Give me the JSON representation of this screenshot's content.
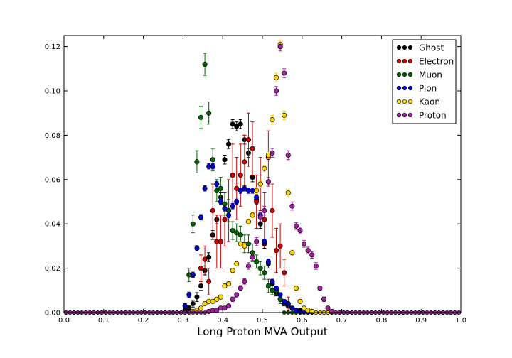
{
  "chart_data": {
    "type": "scatter",
    "title": "",
    "xlabel": "Long Proton MVA Output",
    "ylabel": "",
    "xlim": [
      0.0,
      1.0
    ],
    "ylim": [
      0.0,
      0.125
    ],
    "xticks": [
      "0.0",
      "0.1",
      "0.2",
      "0.3",
      "0.4",
      "0.5",
      "0.6",
      "0.7",
      "0.8",
      "0.9",
      "1.0"
    ],
    "yticks": [
      "0.00",
      "0.02",
      "0.04",
      "0.06",
      "0.08",
      "0.10",
      "0.12"
    ],
    "grid": false,
    "legend_position": "top-right",
    "bin_width": 0.01,
    "series": [
      {
        "name": "Ghost",
        "color": "#000000",
        "x": [
          0.305,
          0.315,
          0.325,
          0.335,
          0.345,
          0.355,
          0.365,
          0.375,
          0.385,
          0.395,
          0.405,
          0.415,
          0.425,
          0.435,
          0.445,
          0.455,
          0.465,
          0.475,
          0.485,
          0.495,
          0.505,
          0.515,
          0.525,
          0.535,
          0.545,
          0.555,
          0.565,
          0.575,
          0.585,
          0.595
        ],
        "y": [
          0.001,
          0.002,
          0.004,
          0.007,
          0.012,
          0.019,
          0.025,
          0.035,
          0.042,
          0.052,
          0.069,
          0.076,
          0.085,
          0.084,
          0.085,
          0.078,
          0.072,
          0.061,
          0.051,
          0.04,
          0.031,
          0.022,
          0.013,
          0.009,
          0.006,
          0.004,
          0.003,
          0.002,
          0.001,
          0.001
        ],
        "err": [
          0.0008,
          0.001,
          0.0015,
          0.002,
          0.002,
          0.002,
          0.002,
          0.002,
          0.002,
          0.002,
          0.002,
          0.002,
          0.002,
          0.002,
          0.002,
          0.002,
          0.002,
          0.002,
          0.002,
          0.002,
          0.002,
          0.002,
          0.002,
          0.0015,
          0.001,
          0.001,
          0.001,
          0.0008,
          0.0005,
          0.0005
        ]
      },
      {
        "name": "Electron",
        "color": "#cc0000",
        "x": [
          0.345,
          0.355,
          0.365,
          0.375,
          0.385,
          0.395,
          0.405,
          0.415,
          0.425,
          0.435,
          0.445,
          0.455,
          0.465,
          0.475,
          0.485,
          0.495,
          0.505,
          0.515,
          0.525,
          0.535,
          0.545,
          0.555,
          0.565
        ],
        "y": [
          0.02,
          0.024,
          0.014,
          0.046,
          0.032,
          0.032,
          0.042,
          0.046,
          0.062,
          0.056,
          0.062,
          0.068,
          0.078,
          0.074,
          0.05,
          0.058,
          0.042,
          0.07,
          0.046,
          0.028,
          0.03,
          0.018,
          0.004
        ],
        "err": [
          0.006,
          0.006,
          0.006,
          0.012,
          0.012,
          0.012,
          0.012,
          0.014,
          0.014,
          0.014,
          0.014,
          0.012,
          0.012,
          0.012,
          0.012,
          0.012,
          0.012,
          0.012,
          0.012,
          0.01,
          0.01,
          0.006,
          0.003
        ]
      },
      {
        "name": "Muon",
        "color": "#006400",
        "x": [
          0.315,
          0.325,
          0.335,
          0.345,
          0.355,
          0.365,
          0.375,
          0.385,
          0.395,
          0.405,
          0.415,
          0.425,
          0.435,
          0.445,
          0.455,
          0.465,
          0.475,
          0.485,
          0.495,
          0.505,
          0.515,
          0.525,
          0.535,
          0.545
        ],
        "y": [
          0.017,
          0.04,
          0.068,
          0.088,
          0.112,
          0.09,
          0.069,
          0.055,
          0.056,
          0.049,
          0.046,
          0.037,
          0.036,
          0.035,
          0.031,
          0.031,
          0.027,
          0.023,
          0.02,
          0.018,
          0.012,
          0.01,
          0.01,
          0.006
        ],
        "err": [
          0.003,
          0.004,
          0.005,
          0.005,
          0.005,
          0.005,
          0.005,
          0.005,
          0.005,
          0.005,
          0.005,
          0.004,
          0.004,
          0.004,
          0.004,
          0.004,
          0.004,
          0.003,
          0.003,
          0.003,
          0.003,
          0.002,
          0.002,
          0.002
        ]
      },
      {
        "name": "Pion",
        "color": "#0000cc",
        "x": [
          0.305,
          0.315,
          0.325,
          0.335,
          0.345,
          0.355,
          0.365,
          0.375,
          0.385,
          0.395,
          0.405,
          0.415,
          0.425,
          0.435,
          0.445,
          0.455,
          0.465,
          0.475,
          0.485,
          0.495,
          0.505,
          0.515,
          0.525,
          0.535,
          0.545,
          0.555,
          0.565,
          0.575,
          0.585
        ],
        "y": [
          0.003,
          0.008,
          0.017,
          0.029,
          0.043,
          0.056,
          0.066,
          0.066,
          0.058,
          0.05,
          0.047,
          0.044,
          0.048,
          0.05,
          0.055,
          0.056,
          0.055,
          0.055,
          0.052,
          0.044,
          0.032,
          0.023,
          0.014,
          0.011,
          0.008,
          0.005,
          0.004,
          0.002,
          0.001
        ],
        "err": [
          0.001,
          0.0012,
          0.0012,
          0.0012,
          0.0012,
          0.0012,
          0.0012,
          0.0012,
          0.0012,
          0.0012,
          0.0012,
          0.0012,
          0.0012,
          0.0012,
          0.0012,
          0.0012,
          0.0012,
          0.0012,
          0.0012,
          0.0012,
          0.0012,
          0.0012,
          0.001,
          0.001,
          0.001,
          0.0008,
          0.0008,
          0.0005,
          0.0005
        ]
      },
      {
        "name": "Kaon",
        "color": "#ffd700",
        "x": [
          0.325,
          0.335,
          0.345,
          0.355,
          0.365,
          0.375,
          0.385,
          0.395,
          0.405,
          0.415,
          0.425,
          0.435,
          0.445,
          0.455,
          0.465,
          0.475,
          0.485,
          0.495,
          0.505,
          0.515,
          0.525,
          0.535,
          0.545,
          0.555,
          0.565,
          0.575,
          0.585,
          0.595,
          0.605,
          0.615,
          0.625
        ],
        "y": [
          0.0005,
          0.001,
          0.002,
          0.004,
          0.005,
          0.005,
          0.006,
          0.007,
          0.012,
          0.013,
          0.019,
          0.022,
          0.031,
          0.03,
          0.041,
          0.044,
          0.055,
          0.058,
          0.065,
          0.071,
          0.087,
          0.106,
          0.121,
          0.089,
          0.054,
          0.027,
          0.011,
          0.005,
          0.002,
          0.001,
          0.0005
        ],
        "err": [
          0.0005,
          0.0005,
          0.0008,
          0.0008,
          0.0008,
          0.0008,
          0.0008,
          0.0008,
          0.001,
          0.001,
          0.001,
          0.001,
          0.0012,
          0.0012,
          0.0012,
          0.0012,
          0.0015,
          0.0015,
          0.0015,
          0.0015,
          0.002,
          0.002,
          0.002,
          0.002,
          0.0015,
          0.0012,
          0.001,
          0.0008,
          0.0005,
          0.0005,
          0.0005
        ]
      },
      {
        "name": "Proton",
        "color": "#a020a0",
        "x": [
          0.365,
          0.375,
          0.385,
          0.395,
          0.405,
          0.415,
          0.425,
          0.435,
          0.445,
          0.455,
          0.465,
          0.475,
          0.485,
          0.495,
          0.505,
          0.515,
          0.525,
          0.535,
          0.545,
          0.555,
          0.565,
          0.575,
          0.585,
          0.595,
          0.605,
          0.615,
          0.625,
          0.635,
          0.645,
          0.655,
          0.665,
          0.675
        ],
        "y": [
          0.0005,
          0.001,
          0.001,
          0.002,
          0.002,
          0.003,
          0.006,
          0.008,
          0.011,
          0.014,
          0.021,
          0.025,
          0.032,
          0.043,
          0.046,
          0.059,
          0.072,
          0.1,
          0.12,
          0.108,
          0.071,
          0.048,
          0.039,
          0.037,
          0.031,
          0.028,
          0.026,
          0.021,
          0.011,
          0.006,
          0.002,
          0.0005
        ],
        "err": [
          0.0005,
          0.0005,
          0.0005,
          0.0008,
          0.0008,
          0.0008,
          0.001,
          0.001,
          0.0012,
          0.0012,
          0.0015,
          0.0015,
          0.0018,
          0.002,
          0.002,
          0.002,
          0.002,
          0.002,
          0.002,
          0.002,
          0.002,
          0.0018,
          0.0015,
          0.0015,
          0.0015,
          0.0015,
          0.0015,
          0.0015,
          0.001,
          0.001,
          0.0008,
          0.0005
        ]
      }
    ]
  }
}
